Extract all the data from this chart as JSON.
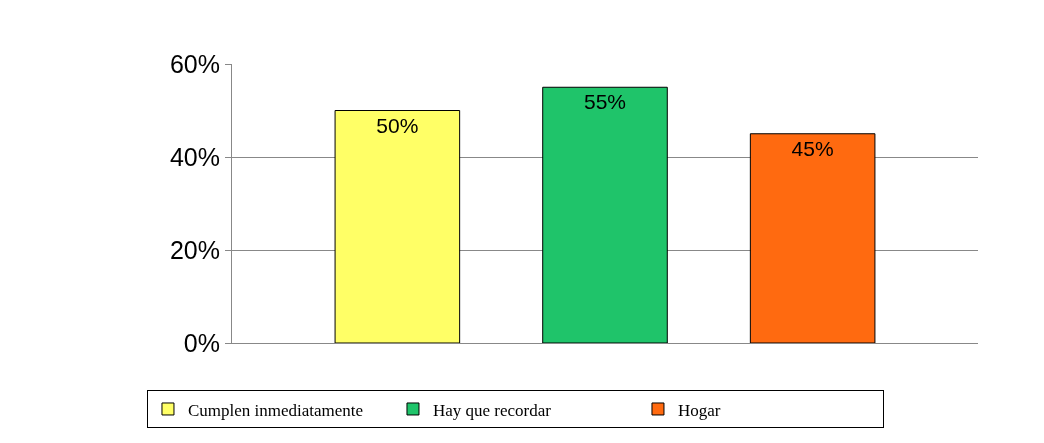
{
  "chart_data": {
    "type": "bar",
    "categories": [
      null
    ],
    "series": [
      {
        "name": "Cumplen inmediatamente",
        "color": "#ffff66",
        "values": [
          50
        ],
        "value_labels": [
          "50%"
        ]
      },
      {
        "name": "Hay que recordar",
        "color": "#1fc46a",
        "values": [
          55
        ],
        "value_labels": [
          "55%"
        ]
      },
      {
        "name": "Hogar",
        "color": "#ff6a10",
        "values": [
          45
        ],
        "value_labels": [
          "45%"
        ]
      }
    ],
    "ylim": [
      0,
      60
    ],
    "yticks": [
      {
        "value": 0,
        "label": "0%"
      },
      {
        "value": 20,
        "label": "20%"
      },
      {
        "value": 40,
        "label": "40%"
      },
      {
        "value": 60,
        "label": "60%"
      }
    ],
    "grid": "y",
    "legend": "bottom"
  }
}
